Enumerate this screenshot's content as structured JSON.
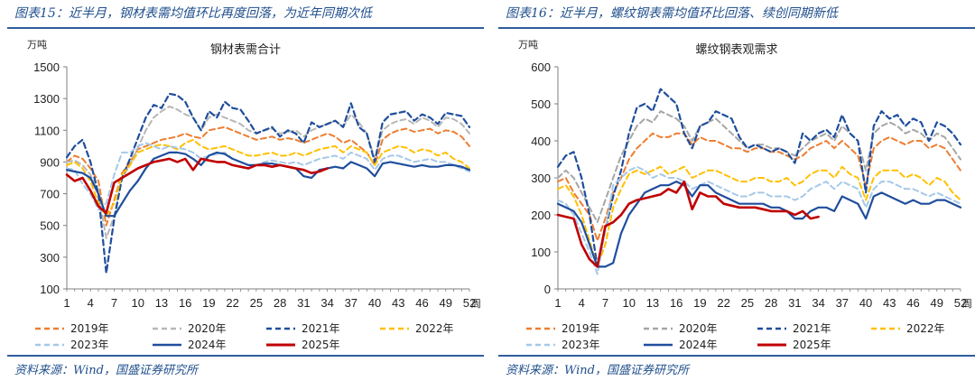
{
  "panels": [
    {
      "figure_title": "图表15：近半月，钢材表需均值环比再度回落，为近年同期次低",
      "unit": "万吨",
      "source": "资料来源：Wind，国盛证券研究所"
    },
    {
      "figure_title": "图表16：近半月，螺纹钢表需均值环比回落、续创同期新低",
      "unit": "万吨",
      "source": "资料来源：Wind，国盛证券研究所"
    }
  ],
  "chart_data": [
    {
      "type": "line",
      "title": "钢材表需合计",
      "ylabel": "万吨",
      "xlabel": "周",
      "xlim": [
        1,
        52
      ],
      "ylim": [
        100,
        1500
      ],
      "yticks": [
        100,
        300,
        500,
        700,
        900,
        1100,
        1300,
        1500
      ],
      "xticks": [
        1,
        4,
        7,
        10,
        13,
        16,
        19,
        22,
        25,
        28,
        31,
        34,
        37,
        40,
        43,
        46,
        49,
        52
      ],
      "legend": "bottom",
      "series": [
        {
          "name": "2019年",
          "color": "#ed7d31",
          "dash": "6,4",
          "width": 2,
          "values": [
            900,
            940,
            920,
            860,
            780,
            500,
            660,
            830,
            900,
            980,
            1000,
            1020,
            1040,
            1050,
            1060,
            1080,
            1060,
            1050,
            1100,
            1110,
            1120,
            1100,
            1080,
            1060,
            1040,
            1050,
            1060,
            1040,
            1050,
            1040,
            1020,
            1040,
            1060,
            1080,
            1060,
            1020,
            1040,
            1000,
            960,
            880,
            1040,
            1080,
            1100,
            1110,
            1090,
            1100,
            1110,
            1080,
            1100,
            1090,
            1060,
            1000
          ]
        },
        {
          "name": "2020年",
          "color": "#b7b7b7",
          "dash": "6,4",
          "width": 2,
          "values": [
            900,
            910,
            880,
            820,
            700,
            420,
            560,
            800,
            880,
            990,
            1100,
            1180,
            1220,
            1250,
            1230,
            1200,
            1180,
            1100,
            1180,
            1200,
            1180,
            1160,
            1140,
            1100,
            1080,
            1100,
            1110,
            1080,
            1090,
            1100,
            1060,
            1100,
            1120,
            1140,
            1160,
            1120,
            1200,
            1150,
            1080,
            920,
            1100,
            1140,
            1160,
            1170,
            1140,
            1180,
            1160,
            1120,
            1180,
            1170,
            1140,
            1080
          ]
        },
        {
          "name": "2021年",
          "color": "#1f4e9c",
          "dash": "6,4",
          "width": 2.2,
          "values": [
            930,
            1000,
            1040,
            900,
            700,
            200,
            540,
            800,
            920,
            1050,
            1180,
            1260,
            1240,
            1330,
            1320,
            1280,
            1180,
            1100,
            1220,
            1180,
            1280,
            1240,
            1230,
            1160,
            1080,
            1100,
            1120,
            1060,
            1100,
            1080,
            1020,
            1150,
            1120,
            1140,
            1160,
            1120,
            1270,
            1120,
            1080,
            900,
            1150,
            1200,
            1210,
            1220,
            1160,
            1200,
            1180,
            1140,
            1210,
            1200,
            1190,
            1120
          ]
        },
        {
          "name": "2022年",
          "color": "#ffc000",
          "dash": "6,4",
          "width": 2,
          "values": [
            880,
            900,
            860,
            780,
            640,
            560,
            640,
            820,
            880,
            960,
            980,
            1000,
            1010,
            1000,
            980,
            1020,
            1040,
            1000,
            980,
            990,
            1000,
            980,
            960,
            940,
            940,
            950,
            960,
            940,
            940,
            960,
            940,
            960,
            980,
            990,
            1000,
            960,
            1000,
            980,
            960,
            880,
            960,
            980,
            1000,
            990,
            960,
            980,
            970,
            940,
            960,
            920,
            900,
            860
          ]
        },
        {
          "name": "2023年",
          "color": "#a6c8e8",
          "dash": "6,4",
          "width": 2,
          "values": [
            860,
            850,
            760,
            700,
            600,
            640,
            820,
            960,
            960,
            1000,
            1020,
            1000,
            980,
            1000,
            990,
            980,
            960,
            920,
            940,
            950,
            960,
            920,
            900,
            880,
            880,
            900,
            910,
            900,
            890,
            900,
            880,
            900,
            920,
            930,
            940,
            920,
            960,
            940,
            920,
            850,
            920,
            940,
            940,
            920,
            900,
            910,
            920,
            900,
            900,
            880,
            860,
            840
          ]
        },
        {
          "name": "2024年",
          "color": "#1f4e9c",
          "dash": "",
          "width": 2.2,
          "values": [
            850,
            840,
            830,
            800,
            700,
            560,
            560,
            640,
            720,
            780,
            860,
            920,
            940,
            960,
            960,
            950,
            920,
            880,
            940,
            960,
            950,
            920,
            900,
            880,
            880,
            890,
            890,
            880,
            870,
            860,
            810,
            800,
            850,
            860,
            870,
            860,
            900,
            880,
            860,
            810,
            890,
            900,
            890,
            880,
            870,
            880,
            870,
            870,
            880,
            880,
            870,
            850
          ]
        },
        {
          "name": "2025年",
          "color": "#c00000",
          "dash": "",
          "width": 2.6,
          "values": [
            820,
            780,
            800,
            720,
            620,
            580,
            770,
            800,
            830,
            860,
            880,
            900,
            910,
            920,
            900,
            920,
            850,
            920,
            910,
            900,
            900,
            880,
            870,
            860,
            880,
            880,
            870,
            880,
            870,
            860,
            850,
            830,
            840,
            860
          ]
        }
      ]
    },
    {
      "type": "line",
      "title": "螺纹钢表观需求",
      "ylabel": "万吨",
      "xlabel": "周",
      "xlim": [
        1,
        52
      ],
      "ylim": [
        0,
        600
      ],
      "yticks": [
        0,
        100,
        200,
        300,
        400,
        500,
        600
      ],
      "xticks": [
        1,
        4,
        7,
        10,
        13,
        16,
        19,
        22,
        25,
        28,
        31,
        34,
        37,
        40,
        43,
        46,
        49,
        52
      ],
      "legend": "bottom",
      "series": [
        {
          "name": "2019年",
          "color": "#ed7d31",
          "dash": "6,4",
          "width": 2,
          "values": [
            290,
            300,
            260,
            230,
            200,
            130,
            190,
            260,
            300,
            350,
            380,
            400,
            420,
            410,
            410,
            420,
            420,
            390,
            410,
            400,
            400,
            390,
            380,
            380,
            370,
            380,
            380,
            370,
            370,
            360,
            350,
            360,
            380,
            390,
            400,
            380,
            400,
            380,
            360,
            280,
            380,
            400,
            410,
            400,
            390,
            400,
            400,
            380,
            390,
            380,
            350,
            320
          ]
        },
        {
          "name": "2020年",
          "color": "#a6a6a6",
          "dash": "6,4",
          "width": 2,
          "values": [
            300,
            320,
            300,
            260,
            220,
            180,
            240,
            300,
            360,
            400,
            440,
            460,
            450,
            480,
            470,
            460,
            440,
            400,
            440,
            450,
            460,
            440,
            420,
            400,
            380,
            390,
            390,
            380,
            380,
            370,
            360,
            380,
            400,
            410,
            420,
            400,
            440,
            420,
            400,
            320,
            420,
            440,
            450,
            440,
            420,
            430,
            420,
            400,
            420,
            410,
            380,
            350
          ]
        },
        {
          "name": "2021年",
          "color": "#1f4e9c",
          "dash": "6,4",
          "width": 2.2,
          "values": [
            330,
            360,
            370,
            300,
            200,
            60,
            160,
            250,
            320,
            420,
            490,
            500,
            480,
            540,
            520,
            500,
            420,
            380,
            440,
            450,
            480,
            470,
            460,
            410,
            380,
            390,
            380,
            370,
            380,
            370,
            340,
            420,
            400,
            420,
            430,
            410,
            470,
            420,
            400,
            260,
            440,
            480,
            460,
            470,
            440,
            460,
            450,
            400,
            450,
            440,
            420,
            390
          ]
        },
        {
          "name": "2022年",
          "color": "#ffc000",
          "dash": "6,4",
          "width": 2,
          "values": [
            270,
            280,
            250,
            200,
            130,
            60,
            120,
            220,
            270,
            310,
            320,
            310,
            320,
            330,
            310,
            320,
            330,
            300,
            310,
            320,
            320,
            310,
            300,
            290,
            290,
            300,
            300,
            290,
            290,
            300,
            280,
            290,
            310,
            320,
            320,
            300,
            330,
            310,
            300,
            240,
            300,
            320,
            320,
            320,
            300,
            310,
            300,
            280,
            300,
            290,
            260,
            240
          ]
        },
        {
          "name": "2023年",
          "color": "#a6c8e8",
          "dash": "6,4",
          "width": 2,
          "values": [
            240,
            230,
            200,
            150,
            100,
            40,
            160,
            280,
            300,
            320,
            330,
            320,
            300,
            310,
            300,
            300,
            290,
            270,
            280,
            290,
            280,
            270,
            260,
            250,
            250,
            260,
            260,
            250,
            250,
            250,
            240,
            250,
            270,
            280,
            290,
            270,
            290,
            280,
            270,
            220,
            270,
            290,
            290,
            280,
            270,
            270,
            260,
            250,
            260,
            250,
            240,
            230
          ]
        },
        {
          "name": "2024年",
          "color": "#1f4e9c",
          "dash": "",
          "width": 2.2,
          "values": [
            230,
            220,
            210,
            180,
            120,
            60,
            60,
            70,
            150,
            200,
            230,
            260,
            270,
            280,
            280,
            290,
            280,
            250,
            280,
            280,
            260,
            250,
            240,
            230,
            230,
            230,
            230,
            220,
            220,
            210,
            190,
            190,
            210,
            220,
            220,
            210,
            250,
            240,
            230,
            190,
            250,
            260,
            250,
            240,
            230,
            240,
            230,
            230,
            240,
            240,
            230,
            220
          ]
        },
        {
          "name": "2025年",
          "color": "#c00000",
          "dash": "",
          "width": 2.6,
          "values": [
            200,
            195,
            190,
            120,
            80,
            60,
            170,
            180,
            200,
            230,
            240,
            245,
            250,
            255,
            270,
            260,
            290,
            215,
            260,
            250,
            250,
            230,
            225,
            220,
            220,
            220,
            215,
            210,
            210,
            210,
            200,
            210,
            190,
            195
          ]
        }
      ]
    }
  ]
}
